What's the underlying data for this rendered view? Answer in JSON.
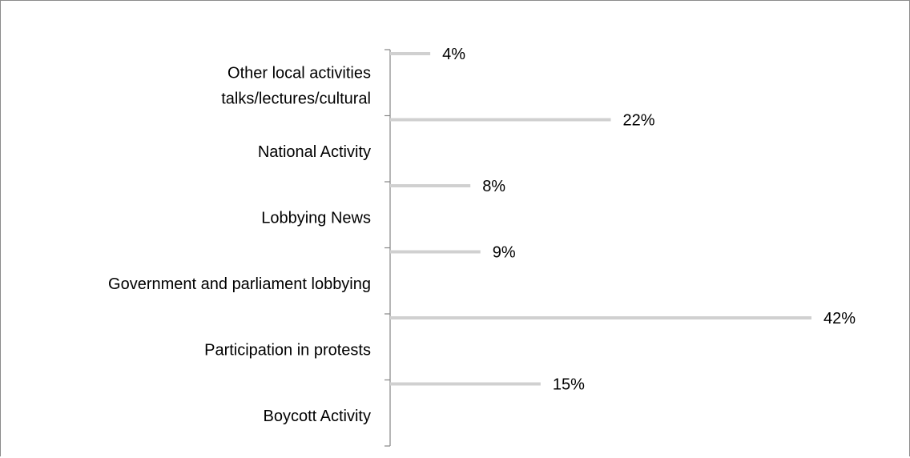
{
  "chart_data": {
    "type": "bar",
    "orientation": "horizontal",
    "categories": [
      [
        "Other local activities",
        "talks/lectures/cultural"
      ],
      [
        "National Activity"
      ],
      [
        "Lobbying News"
      ],
      [
        "Government and parliament lobbying"
      ],
      [
        "Participation in protests"
      ],
      [
        "Boycott Activity"
      ]
    ],
    "values": [
      4,
      22,
      8,
      9,
      42,
      15
    ],
    "value_labels": [
      "4%",
      "22%",
      "8%",
      "9%",
      "42%",
      "15%"
    ],
    "unit": "%",
    "title": "",
    "xlabel": "",
    "ylabel": "",
    "xlim": [
      0,
      45
    ],
    "grid": false,
    "legend": "none",
    "bar_color": "#d0d0d0",
    "axis_color": "#868686"
  }
}
